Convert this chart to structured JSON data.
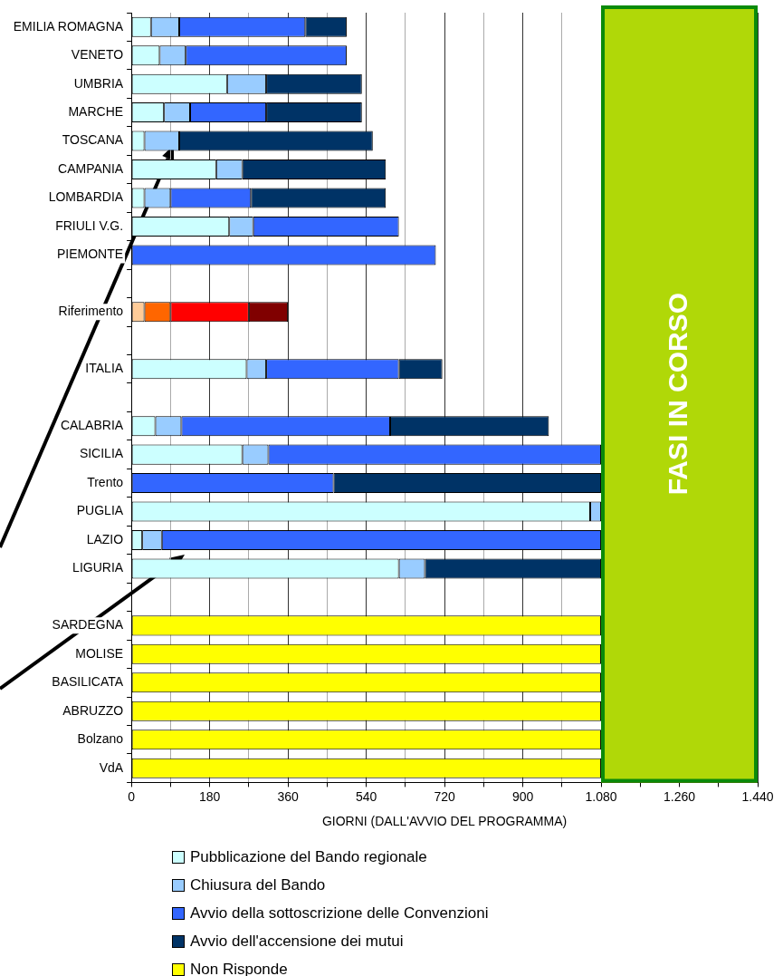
{
  "chart_data": {
    "type": "bar",
    "orientation": "horizontal",
    "stacked": true,
    "xlabel": "GIORNI (DALL'AVVIO DEL PROGRAMMA)",
    "categories": [
      "EMILIA ROMAGNA",
      "VENETO",
      "UMBRIA",
      "MARCHE",
      "TOSCANA",
      "CAMPANIA",
      "LOMBARDIA",
      "FRIULI V.G.",
      "PIEMONTE",
      null,
      "Riferimento",
      null,
      "ITALIA",
      null,
      "CALABRIA",
      "SICILIA",
      "Trento",
      "PUGLIA",
      "LAZIO",
      "LIGURIA",
      null,
      "SARDEGNA",
      "MOLISE",
      "BASILICATA",
      "ABRUZZO",
      "Bolzano",
      "VdA"
    ],
    "series": [
      {
        "name": "Pubblicazione del Bando regionale",
        "color": "#ccffff",
        "colors": [
          "#ccffff",
          "#ccffff",
          "#ccffff",
          "#ccffff",
          "#ccffff",
          "#ccffff",
          "#ccffff",
          "#ccffff",
          "#ccffff",
          "#ccffff",
          "#ffcc99",
          "#ccffff",
          "#ccffff",
          "#ccffff",
          "#ccffff",
          "#ccffff",
          "#ccffff",
          "#ccffff",
          "#ccffff",
          "#ccffff",
          "#ccffff",
          "#ccffff",
          "#ccffff",
          "#ccffff",
          "#ccffff",
          "#ccffff",
          "#ccffff"
        ],
        "values": [
          45,
          65,
          220,
          75,
          30,
          195,
          30,
          225,
          null,
          null,
          30,
          null,
          265,
          null,
          55,
          255,
          null,
          1055,
          25,
          615,
          null,
          null,
          null,
          null,
          null,
          null,
          null
        ]
      },
      {
        "name": "Chiusura del Bando",
        "color": "#99ccff",
        "colors": [
          "#99ccff",
          "#99ccff",
          "#99ccff",
          "#99ccff",
          "#99ccff",
          "#99ccff",
          "#99ccff",
          "#99ccff",
          "#99ccff",
          "#99ccff",
          "#ff6600",
          "#99ccff",
          "#99ccff",
          "#99ccff",
          "#99ccff",
          "#99ccff",
          "#99ccff",
          "#99ccff",
          "#99ccff",
          "#99ccff",
          "#99ccff",
          "#99ccff",
          "#99ccff",
          "#99ccff",
          "#99ccff",
          "#99ccff",
          "#99ccff"
        ],
        "values": [
          65,
          60,
          90,
          60,
          80,
          60,
          60,
          55,
          null,
          null,
          60,
          null,
          45,
          null,
          60,
          60,
          null,
          25,
          45,
          60,
          null,
          null,
          null,
          null,
          null,
          null,
          null
        ]
      },
      {
        "name": "Avvio della sottoscrizione delle Convenzioni",
        "color": "#3366ff",
        "colors": [
          "#3366ff",
          "#3366ff",
          "#3366ff",
          "#3366ff",
          "#3366ff",
          "#3366ff",
          "#3366ff",
          "#3366ff",
          "#3366ff",
          "#3366ff",
          "#ff0000",
          "#3366ff",
          "#3366ff",
          "#3366ff",
          "#3366ff",
          "#3366ff",
          "#3366ff",
          "#3366ff",
          "#3366ff",
          "#3366ff",
          "#3366ff",
          "#3366ff",
          "#3366ff",
          "#3366ff",
          "#3366ff",
          "#3366ff",
          "#3366ff"
        ],
        "values": [
          290,
          370,
          null,
          175,
          null,
          null,
          185,
          335,
          700,
          null,
          180,
          null,
          305,
          null,
          480,
          765,
          465,
          null,
          1010,
          null,
          null,
          null,
          null,
          null,
          null,
          null,
          null
        ]
      },
      {
        "name": "Avvio dell'accensione dei mutui",
        "color": "#003366",
        "colors": [
          "#003366",
          "#003366",
          "#003366",
          "#003366",
          "#003366",
          "#003366",
          "#003366",
          "#003366",
          "#003366",
          "#003366",
          "#800000",
          "#003366",
          "#003366",
          "#003366",
          "#003366",
          "#003366",
          "#003366",
          "#003366",
          "#003366",
          "#003366",
          "#003366",
          "#003366",
          "#003366",
          "#003366",
          "#003366",
          "#003366",
          "#003366"
        ],
        "values": [
          95,
          null,
          220,
          220,
          445,
          330,
          310,
          null,
          null,
          null,
          90,
          null,
          100,
          null,
          365,
          null,
          615,
          null,
          null,
          405,
          null,
          null,
          null,
          null,
          null,
          null,
          null
        ]
      },
      {
        "name": "Non Risponde",
        "color": "#ffff00",
        "values": [
          null,
          null,
          null,
          null,
          null,
          null,
          null,
          null,
          null,
          null,
          null,
          null,
          null,
          null,
          null,
          null,
          null,
          null,
          null,
          null,
          null,
          1080,
          1080,
          1080,
          1080,
          1080,
          1080
        ]
      }
    ],
    "xlim": [
      0,
      1440
    ],
    "xticks": [
      0,
      {
        "value": 90,
        "label": null
      },
      180,
      {
        "value": 270,
        "label": null
      },
      360,
      {
        "value": 450,
        "label": null
      },
      540,
      {
        "value": 630,
        "label": null
      },
      720,
      {
        "value": 810,
        "label": null
      },
      900,
      {
        "value": 990,
        "label": null
      },
      {
        "value": 1080,
        "label": "1.080"
      },
      {
        "value": 1170,
        "label": null
      },
      {
        "value": 1260,
        "label": "1.260"
      },
      {
        "value": 1350,
        "label": null
      },
      {
        "value": 1440,
        "label": "1.440"
      }
    ],
    "grid": "x",
    "legend": "bottom",
    "bands": [
      {
        "axis": "x",
        "from": 1080,
        "to": 1440,
        "label": "FASI IN CORSO",
        "color": "#b0d808"
      }
    ]
  }
}
